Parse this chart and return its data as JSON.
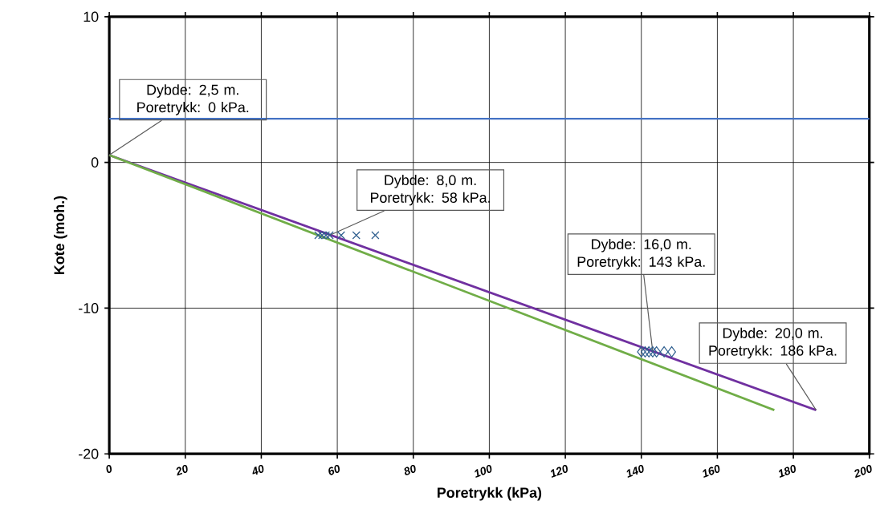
{
  "chart_data": {
    "type": "line",
    "xlabel": "Poretrykk (kPa)",
    "ylabel": "Kote (moh.)",
    "xlim": [
      0,
      200
    ],
    "xticks": [
      0,
      20,
      40,
      60,
      80,
      100,
      120,
      140,
      160,
      180,
      200
    ],
    "ylim": [
      -20,
      10
    ],
    "yticks": [
      -20,
      -10,
      0,
      10
    ],
    "grid": true,
    "series": [
      {
        "color": "#7030a0",
        "x": [
          0,
          186
        ],
        "values": [
          0.5,
          -17
        ],
        "marker": "none"
      },
      {
        "color": "#70ad47",
        "x": [
          0,
          175
        ],
        "values": [
          0.5,
          -17
        ],
        "marker": "none"
      },
      {
        "type": "scatter",
        "color": "#2f5f8f",
        "x": [
          55,
          56,
          57,
          58,
          61,
          65,
          70
        ],
        "values": [
          -5,
          -5,
          -5,
          -5,
          -5,
          -5,
          -5
        ],
        "marker": "cross"
      },
      {
        "type": "scatter",
        "color": "#2f5f8f",
        "x": [
          140,
          141,
          142,
          143,
          144,
          146,
          148
        ],
        "values": [
          -13,
          -13,
          -13,
          -13,
          -13,
          -13,
          -13
        ],
        "marker": "diamond"
      }
    ],
    "ref_lines": [
      {
        "axis": "y",
        "value": 3,
        "color": "#4472c4"
      }
    ],
    "annotations": [
      {
        "text": "Dybde: 2,5 m. Poretrykk: 0 kPa.",
        "x": 0,
        "y": 0.5
      },
      {
        "text": "Dybde: 8,0 m. Poretrykk: 58 kPa.",
        "x": 58,
        "y": -5
      },
      {
        "text": "Dybde: 16,0 m. Poretrykk: 143 kPa.",
        "x": 143,
        "y": -13
      },
      {
        "text": "Dybde: 20,0 m. Poretrykk: 186 kPa.",
        "x": 186,
        "y": -17
      }
    ]
  }
}
